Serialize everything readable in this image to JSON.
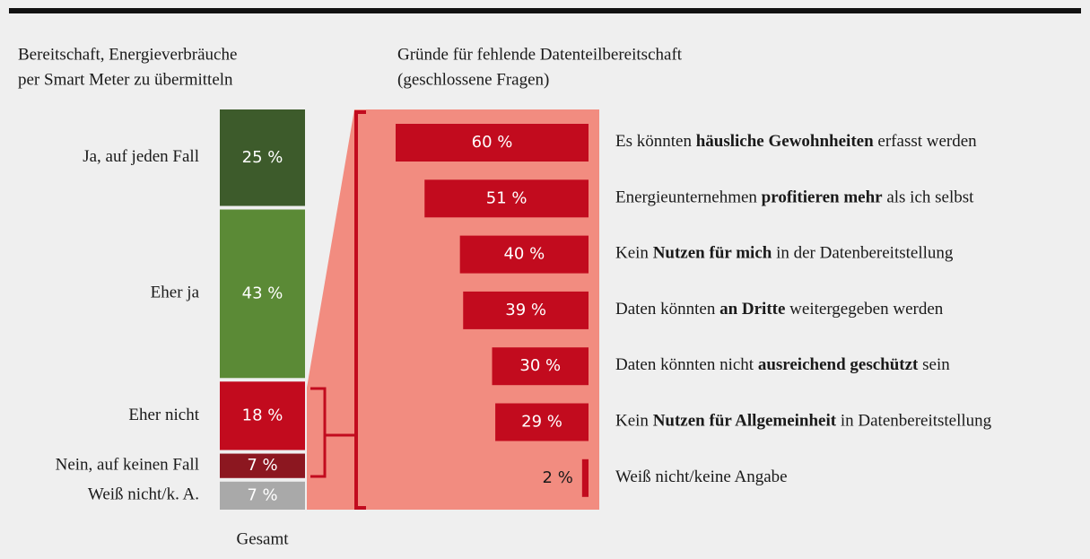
{
  "chart_data": [
    {
      "type": "stacked-bar",
      "title": [
        "Bereitschaft, Energieverbräuche",
        "per Smart Meter zu übermitteln"
      ],
      "categories": [
        "Gesamt"
      ],
      "series": [
        {
          "name": "Ja, auf jeden Fall",
          "color": "#3d5b2b",
          "values": [
            25
          ],
          "value_labels": [
            "25 %"
          ]
        },
        {
          "name": "Eher ja",
          "color": "#5b8a36",
          "values": [
            43
          ],
          "value_labels": [
            "43 %"
          ]
        },
        {
          "name": "Eher nicht",
          "color": "#c20b1e",
          "values": [
            18
          ],
          "value_labels": [
            "18 %"
          ]
        },
        {
          "name": "Nein, auf keinen Fall",
          "color": "#8c1720",
          "values": [
            7
          ],
          "value_labels": [
            "7 %"
          ]
        },
        {
          "name": "Weiß nicht/k. A.",
          "color": "#a9a9a9",
          "values": [
            7
          ],
          "value_labels": [
            "7 %"
          ]
        }
      ]
    },
    {
      "type": "hbar",
      "title": [
        "Gründe für fehlende Datenteilbereitschaft",
        "(geschlossene Fragen)"
      ],
      "color": "#c20b1e",
      "categories": [
        [
          "Es könnten ",
          "häusliche Gewohnheiten",
          " erfasst werden"
        ],
        [
          "Energieunternehmen ",
          "profitieren mehr",
          " als ich selbst"
        ],
        [
          "Kein ",
          "Nutzen für mich",
          " in der Datenbereitstellung"
        ],
        [
          "Daten könnten ",
          "an Dritte",
          " weitergegeben werden"
        ],
        [
          "Daten könnten nicht ",
          "ausreichend geschützt",
          " sein"
        ],
        [
          "Kein ",
          "Nutzen für Allgemeinheit",
          " in Datenbereitstellung"
        ],
        [
          "Weiß nicht/keine Angabe"
        ]
      ],
      "values": [
        60,
        51,
        40,
        39,
        30,
        29,
        2
      ],
      "value_labels": [
        "60 %",
        "51 %",
        "40 %",
        "39 %",
        "30 %",
        "29 %",
        "2 %"
      ]
    }
  ]
}
